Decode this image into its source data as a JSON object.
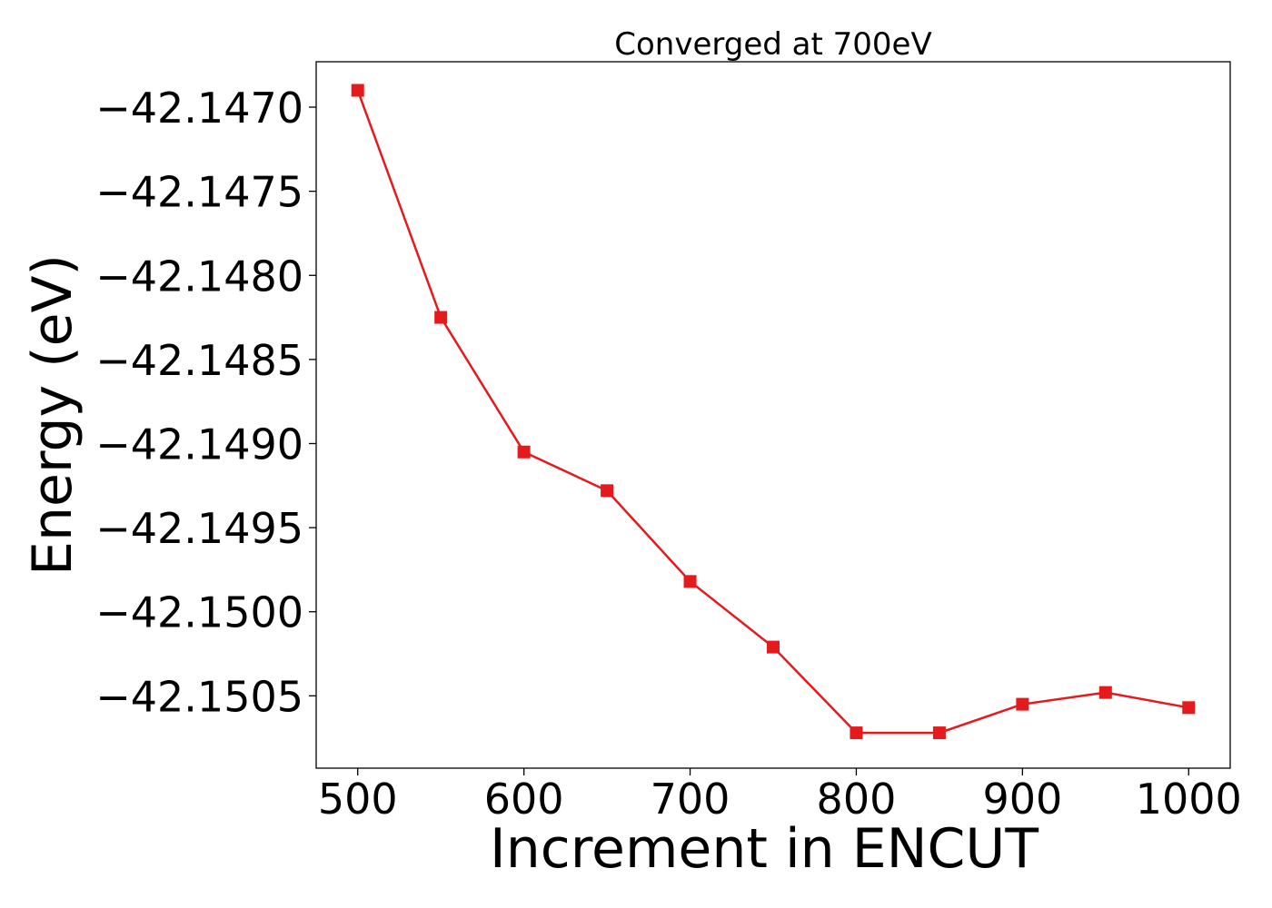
{
  "chart_data": {
    "type": "line",
    "title": "Converged at 700eV",
    "xlabel": "Increment in ENCUT",
    "ylabel": "Energy (eV)",
    "xlim": [
      475,
      1025
    ],
    "ylim": [
      -42.15093,
      -42.14673
    ],
    "x_ticks": [
      500,
      600,
      700,
      800,
      900,
      1000
    ],
    "x_tick_labels": [
      "500",
      "600",
      "700",
      "800",
      "900",
      "1000"
    ],
    "y_ticks": [
      -42.147,
      -42.1475,
      -42.148,
      -42.1485,
      -42.149,
      -42.1495,
      -42.15,
      -42.1505
    ],
    "y_tick_labels": [
      "−42.1470",
      "−42.1475",
      "−42.1480",
      "−42.1485",
      "−42.1490",
      "−42.1495",
      "−42.1500",
      "−42.1505"
    ],
    "grid": false,
    "series": [
      {
        "color": "#e41a1c",
        "marker": "square",
        "x": [
          500,
          550,
          600,
          650,
          700,
          750,
          800,
          850,
          900,
          950,
          1000
        ],
        "y": [
          -42.1469,
          -42.14825,
          -42.14905,
          -42.14928,
          -42.14982,
          -42.15021,
          -42.15072,
          -42.15072,
          -42.15055,
          -42.15048,
          -42.15057
        ]
      }
    ]
  }
}
